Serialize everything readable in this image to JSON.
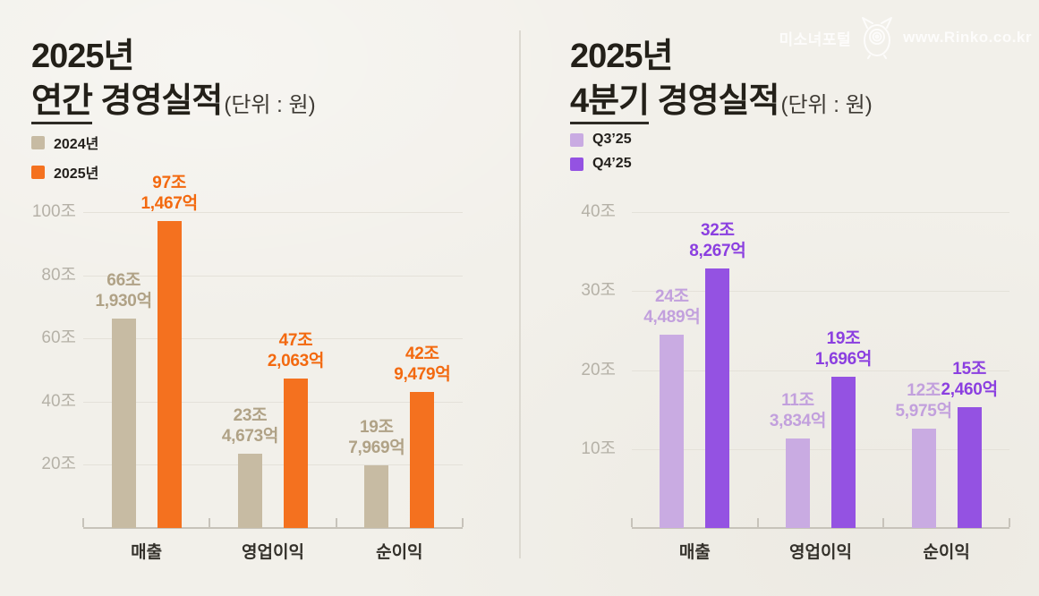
{
  "watermark": {
    "site_name": "미소녀포털",
    "url": "www.Rinko.co.kr"
  },
  "panels": [
    {
      "title_line1": "2025년",
      "title_line2_underlined": "연간",
      "title_line2_rest": " 경영실적",
      "unit_note": "(단위 : 원)"
    },
    {
      "title_line1": "2025년",
      "title_line2_underlined": "4분기",
      "title_line2_rest": " 경영실적",
      "unit_note": "(단위 : 원)"
    }
  ],
  "chart_data": [
    {
      "type": "bar",
      "title": "2025년 연간 경영실적",
      "unit": "원 (단위 : 원)",
      "categories": [
        "매출",
        "영업이익",
        "순이익"
      ],
      "series": [
        {
          "name": "2024년",
          "color": "#c7bba3",
          "label_color": "#b0a286",
          "values_trillion_krw": [
            66.193,
            23.4673,
            19.7969
          ],
          "value_labels": [
            "66조\n1,930억",
            "23조\n4,673억",
            "19조\n7,969억"
          ]
        },
        {
          "name": "2025년",
          "color": "#f4711f",
          "label_color": "#f3690f",
          "values_trillion_krw": [
            97.1467,
            47.2063,
            42.9479
          ],
          "value_labels": [
            "97조\n1,467억",
            "47조\n2,063억",
            "42조\n9,479억"
          ]
        }
      ],
      "y_axis": {
        "tick_values": [
          20,
          40,
          60,
          80,
          100
        ],
        "tick_labels": [
          "20조",
          "40조",
          "60조",
          "80조",
          "100조"
        ],
        "max": 100
      },
      "grid": true,
      "legend_position": "top-left",
      "ylim": [
        0,
        100
      ]
    },
    {
      "type": "bar",
      "title": "2025년 4분기 경영실적",
      "unit": "원 (단위 : 원)",
      "categories": [
        "매출",
        "영업이익",
        "순이익"
      ],
      "series": [
        {
          "name": "Q3’25",
          "color": "#c9abe2",
          "label_color": "#c2a0dd",
          "values_trillion_krw": [
            24.4489,
            11.3834,
            12.5975
          ],
          "value_labels": [
            "24조\n4,489억",
            "11조\n3,834억",
            "12조\n5,975억"
          ]
        },
        {
          "name": "Q4’25",
          "color": "#9452e2",
          "label_color": "#8b3fe0",
          "values_trillion_krw": [
            32.8267,
            19.1696,
            15.246
          ],
          "value_labels": [
            "32조\n8,267억",
            "19조\n1,696억",
            "15조\n2,460억"
          ]
        }
      ],
      "y_axis": {
        "tick_values": [
          10,
          20,
          30,
          40
        ],
        "tick_labels": [
          "10조",
          "20조",
          "30조",
          "40조"
        ],
        "max": 40
      },
      "grid": true,
      "legend_position": "top-left",
      "ylim": [
        0,
        40
      ]
    }
  ]
}
